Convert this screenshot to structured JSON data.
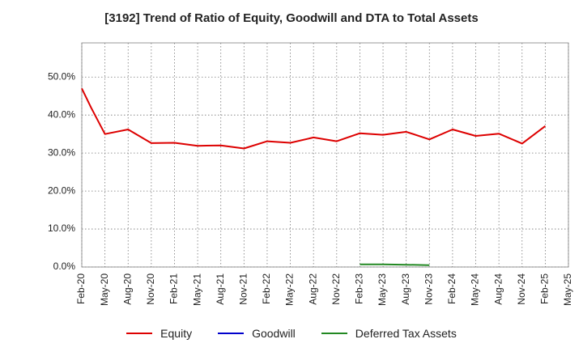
{
  "chart_data": {
    "type": "line",
    "title": "[3192]  Trend of Ratio of Equity, Goodwill and DTA to Total Assets",
    "xlabel": "",
    "ylabel": "",
    "ylim": [
      0,
      0.59
    ],
    "yticks": [
      0,
      0.1,
      0.2,
      0.3,
      0.4,
      0.5
    ],
    "ytick_labels": [
      "0.0%",
      "10.0%",
      "20.0%",
      "30.0%",
      "40.0%",
      "50.0%"
    ],
    "x_labels": [
      "Feb-20",
      "May-20",
      "Aug-20",
      "Nov-20",
      "Feb-21",
      "May-21",
      "Aug-21",
      "Nov-21",
      "Feb-22",
      "May-22",
      "Aug-22",
      "Nov-22",
      "Feb-23",
      "May-23",
      "Aug-23",
      "Nov-23",
      "Feb-24",
      "May-24",
      "Aug-24",
      "Nov-24",
      "Feb-25",
      "May-25"
    ],
    "grid": true,
    "legend_position": "bottom",
    "series": [
      {
        "name": "Equity",
        "color": "#dd0000",
        "points": [
          [
            0,
            0.47
          ],
          [
            0.4,
            0.42
          ],
          [
            1,
            0.35
          ],
          [
            2,
            0.362
          ],
          [
            3,
            0.326
          ],
          [
            4,
            0.327
          ],
          [
            5,
            0.319
          ],
          [
            6,
            0.32
          ],
          [
            7,
            0.312
          ],
          [
            8,
            0.331
          ],
          [
            9,
            0.327
          ],
          [
            10,
            0.341
          ],
          [
            11,
            0.331
          ],
          [
            12,
            0.352
          ],
          [
            13,
            0.348
          ],
          [
            14,
            0.356
          ],
          [
            15,
            0.336
          ],
          [
            16,
            0.362
          ],
          [
            17,
            0.345
          ],
          [
            18,
            0.351
          ],
          [
            19,
            0.325
          ],
          [
            20,
            0.371
          ]
        ]
      },
      {
        "name": "Goodwill",
        "color": "#0000cc",
        "points": []
      },
      {
        "name": "Deferred Tax Assets",
        "color": "#228822",
        "points": [
          [
            12,
            0.007
          ],
          [
            13,
            0.007
          ],
          [
            14,
            0.006
          ],
          [
            15,
            0.005
          ]
        ]
      }
    ]
  }
}
